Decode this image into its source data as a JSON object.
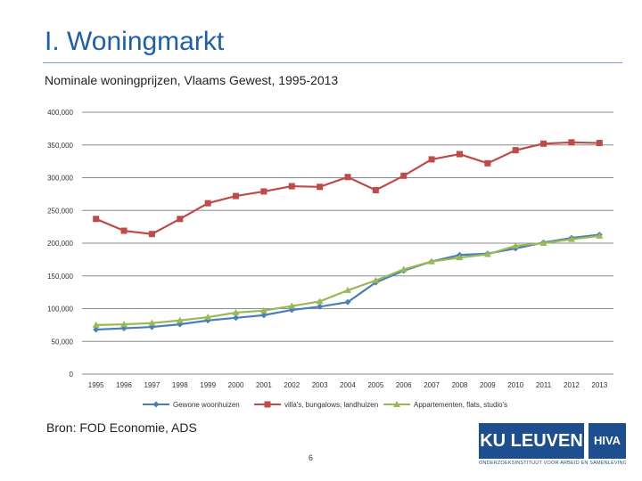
{
  "slide": {
    "title": "I. Woningmarkt",
    "subtitle": "Nominale woningprijzen, Vlaams Gewest, 1995-2013",
    "source": "Bron: FOD Economie, ADS",
    "page_number": "6"
  },
  "logos": {
    "ku_leuven": "KU LEUVEN",
    "hiva": "HIVA",
    "tagline": "ONDERZOEKSINSTITUUT VOOR ARBEID EN SAMENLEVING"
  },
  "chart_data": {
    "type": "line",
    "title": "",
    "xlabel": "",
    "ylabel": "",
    "ylim": [
      0,
      400000
    ],
    "ytick_labels": [
      "0",
      "50,000",
      "100,000",
      "150,000",
      "200,000",
      "250,000",
      "300,000",
      "350,000",
      "400,000"
    ],
    "yticks": [
      0,
      50000,
      100000,
      150000,
      200000,
      250000,
      300000,
      350000,
      400000
    ],
    "categories": [
      "1995",
      "1996",
      "1997",
      "1998",
      "1999",
      "2000",
      "2001",
      "2002",
      "2003",
      "2004",
      "2005",
      "2006",
      "2007",
      "2008",
      "2009",
      "2010",
      "2011",
      "2012",
      "2013"
    ],
    "grid": true,
    "legend_position": "bottom",
    "series": [
      {
        "name": "Gewone woonhuizen",
        "color": "#4a7ebb",
        "marker": "diamond",
        "values": [
          68000,
          70000,
          72000,
          76000,
          82000,
          86000,
          90000,
          98000,
          103000,
          110000,
          140000,
          158000,
          172000,
          182000,
          184000,
          192000,
          201000,
          208000,
          213000
        ]
      },
      {
        "name": "villa's, bungalows, landhuizen",
        "color": "#be4b48",
        "marker": "square",
        "values": [
          237000,
          219000,
          214000,
          237000,
          261000,
          272000,
          279000,
          287000,
          286000,
          301000,
          281000,
          303000,
          328000,
          336000,
          322000,
          342000,
          352000,
          354000,
          353000
        ]
      },
      {
        "name": "Appartementen, flats, studio's",
        "color": "#98b954",
        "marker": "triangle",
        "values": [
          75000,
          76000,
          78000,
          82000,
          87000,
          94000,
          97000,
          104000,
          111000,
          128000,
          143000,
          160000,
          172000,
          178000,
          183000,
          196000,
          200000,
          206000,
          211000
        ]
      }
    ]
  }
}
